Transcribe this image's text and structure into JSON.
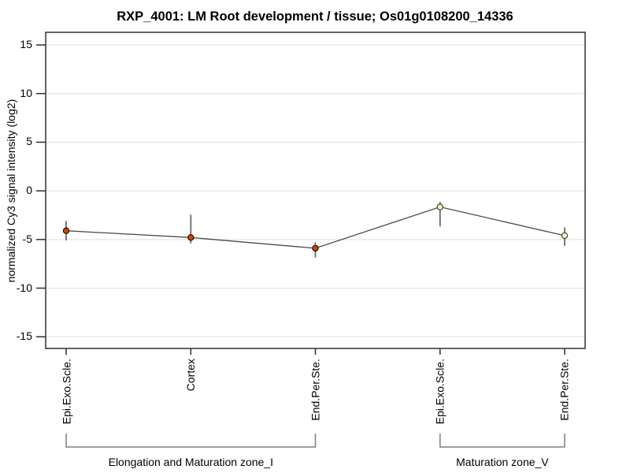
{
  "title": "RXP_4001: LM Root development / tissue; Os01g0108200_14336",
  "chart_data": {
    "type": "line",
    "title": "RXP_4001: LM Root development / tissue; Os01g0108200_14336",
    "xlabel": "",
    "ylabel": "normalized Cy3 signal intensity (log2)",
    "ylim": [
      -16.2,
      16.3
    ],
    "yticks": [
      15,
      10,
      5,
      0,
      -5,
      -10,
      -15
    ],
    "grid": true,
    "legend": "none",
    "points": [
      {
        "category": "Epi.Exo.Scle.",
        "group": "Elongation and Maturation zone_I",
        "value": -4.1,
        "upper": -3.1,
        "lower": -5.1,
        "marker": "filled"
      },
      {
        "category": "Cortex",
        "group": "Elongation and Maturation zone_I",
        "value": -4.8,
        "upper": -2.45,
        "lower": -5.4,
        "marker": "filled"
      },
      {
        "category": "End.Per.Ste.",
        "group": "Elongation and Maturation zone_I",
        "value": -5.9,
        "upper": -5.3,
        "lower": -6.85,
        "marker": "filled"
      },
      {
        "category": "Epi.Exo.Scle.",
        "group": "Maturation zone_V",
        "value": -1.65,
        "upper": -1.15,
        "lower": -3.65,
        "marker": "open"
      },
      {
        "category": "End.Per.Ste.",
        "group": "Maturation zone_V",
        "value": -4.6,
        "upper": -3.75,
        "lower": -5.65,
        "marker": "open"
      }
    ],
    "groups": [
      {
        "label": "Elongation and Maturation zone_I",
        "start_index": 0,
        "end_index": 2
      },
      {
        "label": "Maturation zone_V",
        "start_index": 3,
        "end_index": 4
      }
    ],
    "colors": {
      "marker_filled_fill": "#cc4400",
      "marker_filled_stroke": "#1f1200",
      "marker_open_fill": "#ffffcc",
      "marker_open_stroke": "#44441f",
      "line": "#4a4a4a",
      "error_bar": "#616161",
      "gridline": "#e7e7e7",
      "plot_border": "#3d3d3d",
      "tick": "#2f2f2f",
      "bracket": "#7f7f7f",
      "text": "#000000"
    }
  }
}
